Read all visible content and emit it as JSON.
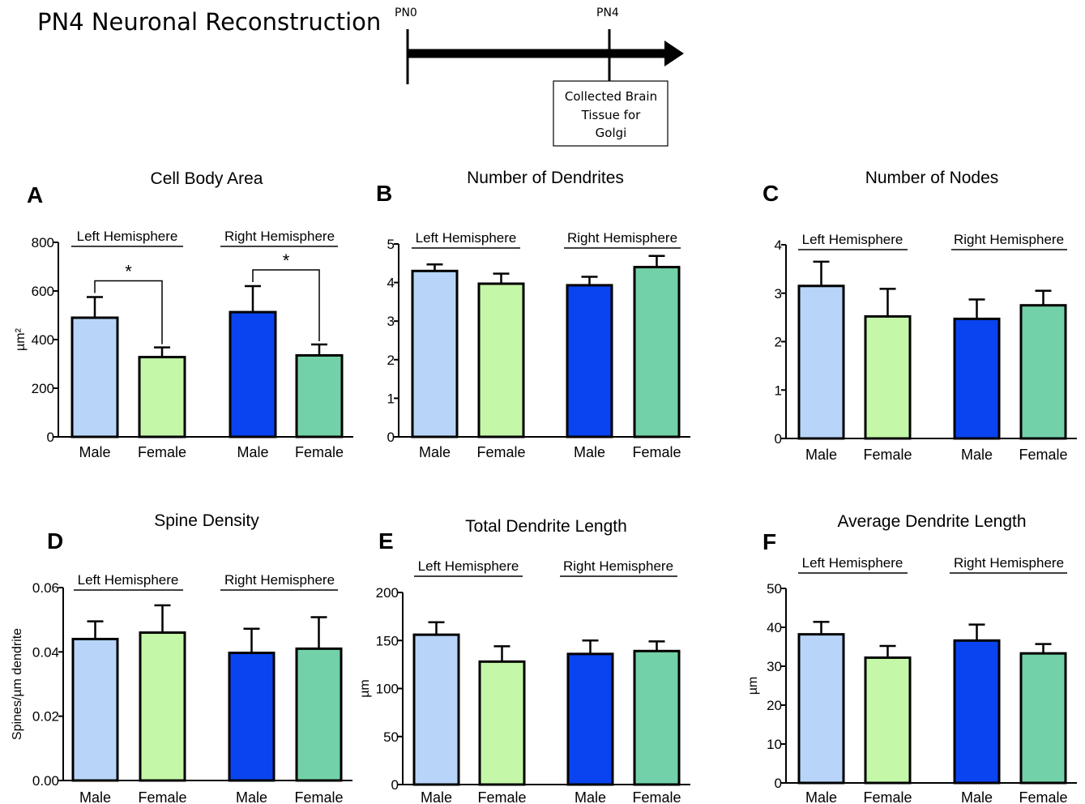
{
  "page_title": "PN4 Neuronal Reconstruction",
  "timeline": {
    "start_label": "PN0",
    "end_label": "PN4",
    "box_lines": [
      "Collected Brain",
      "Tissue for",
      "Golgi"
    ]
  },
  "colors": {
    "male_left": "#b8d5f9",
    "female_left": "#c5f7a8",
    "male_right": "#0a44f0",
    "female_right": "#72d1a8"
  },
  "chart_data": [
    {
      "panel": "A",
      "type": "bar",
      "title": "Cell Body Area",
      "ylabel": "µm²",
      "ylim": [
        0,
        800
      ],
      "yticks": [
        "0",
        "200",
        "400",
        "600",
        "800"
      ],
      "groups": [
        "Left Hemisphere",
        "Right Hemisphere"
      ],
      "categories": [
        "Male",
        "Female",
        "Male",
        "Female"
      ],
      "values": [
        490,
        328,
        513,
        335
      ],
      "errors": [
        85,
        40,
        107,
        45
      ],
      "significance": [
        {
          "from": 0,
          "to": 1,
          "label": "*"
        },
        {
          "from": 2,
          "to": 3,
          "label": "*"
        }
      ]
    },
    {
      "panel": "B",
      "type": "bar",
      "title": "Number of Dendrites",
      "ylabel": "",
      "ylim": [
        0,
        5
      ],
      "yticks": [
        "0",
        "1",
        "2",
        "3",
        "4",
        "5"
      ],
      "groups": [
        "Left Hemisphere",
        "Right Hemisphere"
      ],
      "categories": [
        "Male",
        "Female",
        "Male",
        "Female"
      ],
      "values": [
        4.3,
        3.97,
        3.93,
        4.4
      ],
      "errors": [
        0.17,
        0.26,
        0.22,
        0.29
      ]
    },
    {
      "panel": "C",
      "type": "bar",
      "title": "Number of Nodes",
      "ylabel": "",
      "ylim": [
        0,
        4
      ],
      "yticks": [
        "0",
        "1",
        "2",
        "3",
        "4"
      ],
      "groups": [
        "Left Hemisphere",
        "Right Hemisphere"
      ],
      "categories": [
        "Male",
        "Female",
        "Male",
        "Female"
      ],
      "values": [
        3.15,
        2.52,
        2.47,
        2.75
      ],
      "errors": [
        0.5,
        0.57,
        0.4,
        0.3
      ]
    },
    {
      "panel": "D",
      "type": "bar",
      "title": "Spine Density",
      "ylabel": "Spines/µm dendrite",
      "ylim": [
        0,
        0.06
      ],
      "yticks": [
        "0.00",
        "0.02",
        "0.04",
        "0.06"
      ],
      "groups": [
        "Left Hemisphere",
        "Right Hemisphere"
      ],
      "categories": [
        "Male",
        "Female",
        "Male",
        "Female"
      ],
      "values": [
        0.044,
        0.046,
        0.0397,
        0.041
      ],
      "errors": [
        0.0055,
        0.0085,
        0.0075,
        0.0098
      ]
    },
    {
      "panel": "E",
      "type": "bar",
      "title": "Total Dendrite Length",
      "ylabel": "µm",
      "ylim": [
        0,
        200
      ],
      "yticks": [
        "0",
        "50",
        "100",
        "150",
        "200"
      ],
      "groups": [
        "Left Hemisphere",
        "Right Hemisphere"
      ],
      "categories": [
        "Male",
        "Female",
        "Male",
        "Female"
      ],
      "values": [
        156,
        128,
        136,
        139
      ],
      "errors": [
        13,
        16,
        14,
        10
      ]
    },
    {
      "panel": "F",
      "type": "bar",
      "title": "Average Dendrite Length",
      "ylabel": "µm",
      "ylim": [
        0,
        50
      ],
      "yticks": [
        "0",
        "10",
        "20",
        "30",
        "40",
        "50"
      ],
      "groups": [
        "Left Hemisphere",
        "Right Hemisphere"
      ],
      "categories": [
        "Male",
        "Female",
        "Male",
        "Female"
      ],
      "values": [
        38.2,
        32.2,
        36.6,
        33.3
      ],
      "errors": [
        3.2,
        3,
        4.1,
        2.4
      ]
    }
  ]
}
